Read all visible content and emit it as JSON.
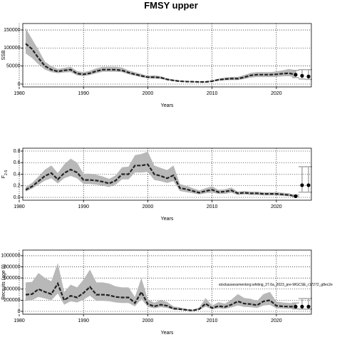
{
  "figure": {
    "title": "FMSY upper",
    "annotation": "stockassessmentorg:whiting_27.6a_2023_pre-WGCSE_r17272_g8ec2e"
  },
  "colors": {
    "band": "#b8b8b8",
    "line": "#222222",
    "error": "#aaaaaa",
    "point": "#000000"
  },
  "chart_data": [
    {
      "type": "line",
      "title": "",
      "xlabel": "Years",
      "ylabel": "SSB",
      "xlim": [
        1981,
        2025
      ],
      "ylim": [
        0,
        160000
      ],
      "grid": "dotted",
      "x_ticks": [
        1980,
        1990,
        2000,
        2010,
        2020
      ],
      "y_ticks": [
        0,
        50000,
        100000,
        150000
      ],
      "y_tick_labels": [
        "0",
        "50000",
        "100000",
        "150000"
      ],
      "years": [
        1981,
        1982,
        1983,
        1984,
        1985,
        1986,
        1987,
        1988,
        1989,
        1990,
        1991,
        1992,
        1993,
        1994,
        1995,
        1996,
        1997,
        1998,
        1999,
        2000,
        2001,
        2002,
        2003,
        2004,
        2005,
        2006,
        2007,
        2008,
        2009,
        2010,
        2011,
        2012,
        2013,
        2014,
        2015,
        2016,
        2017,
        2018,
        2019,
        2020,
        2021,
        2022,
        2023
      ],
      "median": [
        112000,
        97000,
        72000,
        50000,
        40000,
        35000,
        38000,
        40000,
        29000,
        27000,
        30000,
        36000,
        40000,
        40000,
        40000,
        38000,
        32000,
        27000,
        23000,
        19000,
        19000,
        18000,
        13000,
        10000,
        8000,
        7000,
        6500,
        6000,
        6000,
        8000,
        12000,
        14000,
        15000,
        15000,
        19000,
        24000,
        26000,
        26000,
        26000,
        27000,
        29000,
        30000,
        26000
      ],
      "lower": [
        85000,
        72000,
        55000,
        40000,
        33000,
        30000,
        32000,
        33000,
        24000,
        22000,
        25000,
        30000,
        34000,
        34000,
        34000,
        33000,
        27000,
        23000,
        19000,
        16000,
        15500,
        14500,
        10500,
        8000,
        6500,
        5800,
        5200,
        4800,
        4800,
        6300,
        9000,
        10500,
        11000,
        11000,
        14000,
        18000,
        19500,
        19500,
        19500,
        20000,
        21500,
        22000,
        18000
      ],
      "upper": [
        155000,
        125000,
        95000,
        62000,
        50000,
        42000,
        45000,
        48000,
        36000,
        33000,
        37000,
        44000,
        48000,
        48000,
        48000,
        46000,
        38000,
        33000,
        28000,
        23000,
        24000,
        22000,
        16000,
        12500,
        10000,
        8500,
        8000,
        7500,
        7500,
        10000,
        15000,
        18000,
        20000,
        20000,
        25000,
        31000,
        33000,
        33000,
        33000,
        35000,
        38000,
        42000,
        38000
      ],
      "projection": {
        "x": [
          2023,
          2024,
          2025
        ],
        "y": [
          26000,
          23000,
          21000
        ],
        "lower": [
          18000,
          14000,
          13000
        ],
        "upper": [
          38000,
          40000,
          40000
        ]
      }
    },
    {
      "type": "line",
      "title": "",
      "xlabel": "Years",
      "ylabel": "F",
      "ylabel_sub": "2-5",
      "xlim": [
        1981,
        2025
      ],
      "ylim": [
        0,
        0.8
      ],
      "grid": "dotted",
      "x_ticks": [
        1980,
        1990,
        2000,
        2010,
        2020
      ],
      "y_ticks": [
        0.0,
        0.2,
        0.4,
        0.6,
        0.8
      ],
      "y_tick_labels": [
        "0.0",
        "0.2",
        "0.4",
        "0.6",
        "0.8"
      ],
      "years": [
        1981,
        1982,
        1983,
        1984,
        1985,
        1986,
        1987,
        1988,
        1989,
        1990,
        1991,
        1992,
        1993,
        1994,
        1995,
        1996,
        1997,
        1998,
        1999,
        2000,
        2001,
        2002,
        2003,
        2004,
        2005,
        2006,
        2007,
        2008,
        2009,
        2010,
        2011,
        2012,
        2013,
        2014,
        2015,
        2016,
        2017,
        2018,
        2019,
        2020,
        2021,
        2022,
        2023
      ],
      "median": [
        0.13,
        0.19,
        0.28,
        0.37,
        0.42,
        0.31,
        0.42,
        0.48,
        0.43,
        0.3,
        0.3,
        0.29,
        0.27,
        0.24,
        0.29,
        0.4,
        0.4,
        0.55,
        0.55,
        0.57,
        0.4,
        0.37,
        0.33,
        0.38,
        0.16,
        0.14,
        0.11,
        0.08,
        0.11,
        0.13,
        0.09,
        0.1,
        0.12,
        0.07,
        0.08,
        0.07,
        0.07,
        0.06,
        0.06,
        0.06,
        0.05,
        0.04,
        0.02
      ],
      "lower": [
        0.1,
        0.15,
        0.22,
        0.29,
        0.33,
        0.24,
        0.33,
        0.37,
        0.33,
        0.23,
        0.23,
        0.22,
        0.2,
        0.18,
        0.22,
        0.31,
        0.31,
        0.43,
        0.43,
        0.44,
        0.3,
        0.28,
        0.25,
        0.28,
        0.11,
        0.09,
        0.07,
        0.05,
        0.07,
        0.08,
        0.06,
        0.06,
        0.08,
        0.04,
        0.05,
        0.04,
        0.04,
        0.035,
        0.035,
        0.035,
        0.025,
        0.02,
        0.01
      ],
      "upper": [
        0.18,
        0.25,
        0.36,
        0.48,
        0.55,
        0.42,
        0.57,
        0.67,
        0.6,
        0.41,
        0.41,
        0.39,
        0.36,
        0.32,
        0.38,
        0.52,
        0.53,
        0.73,
        0.75,
        0.79,
        0.55,
        0.51,
        0.47,
        0.55,
        0.23,
        0.2,
        0.16,
        0.12,
        0.16,
        0.19,
        0.13,
        0.14,
        0.17,
        0.1,
        0.11,
        0.1,
        0.1,
        0.09,
        0.09,
        0.09,
        0.08,
        0.07,
        0.04
      ],
      "projection": {
        "x": [
          2023,
          2024,
          2025
        ],
        "y": [
          0.02,
          0.21,
          0.21
        ],
        "lower": [
          0.01,
          0.09,
          0.09
        ],
        "upper": [
          0.04,
          0.53,
          0.53
        ]
      }
    },
    {
      "type": "line",
      "title": "",
      "xlabel": "Years",
      "ylabel": "Recruits (age 0)",
      "xlim": [
        1981,
        2025
      ],
      "ylim": [
        0,
        1050000
      ],
      "grid": "dotted",
      "x_ticks": [
        1980,
        1990,
        2000,
        2010,
        2020
      ],
      "y_ticks": [
        0,
        200000,
        400000,
        600000,
        800000,
        1000000
      ],
      "y_tick_labels": [
        "0",
        "200000",
        "400000",
        "600000",
        "800000",
        "1000000"
      ],
      "years": [
        1981,
        1982,
        1983,
        1984,
        1985,
        1986,
        1987,
        1988,
        1989,
        1990,
        1991,
        1992,
        1993,
        1994,
        1995,
        1996,
        1997,
        1998,
        1999,
        2000,
        2001,
        2002,
        2003,
        2004,
        2005,
        2006,
        2007,
        2008,
        2009,
        2010,
        2011,
        2012,
        2013,
        2014,
        2015,
        2016,
        2017,
        2018,
        2019,
        2020,
        2021,
        2022,
        2023
      ],
      "median": [
        300000,
        310000,
        400000,
        350000,
        310000,
        500000,
        200000,
        280000,
        250000,
        330000,
        440000,
        300000,
        300000,
        290000,
        260000,
        250000,
        250000,
        150000,
        350000,
        130000,
        90000,
        120000,
        100000,
        50000,
        40000,
        25000,
        15000,
        40000,
        140000,
        60000,
        95000,
        80000,
        120000,
        180000,
        140000,
        130000,
        110000,
        180000,
        200000,
        100000,
        90000,
        85000,
        85000
      ],
      "lower": [
        190000,
        200000,
        260000,
        230000,
        200000,
        320000,
        120000,
        180000,
        160000,
        210000,
        280000,
        190000,
        190000,
        180000,
        160000,
        150000,
        150000,
        90000,
        220000,
        80000,
        55000,
        75000,
        60000,
        30000,
        24000,
        14000,
        8000,
        24000,
        85000,
        35000,
        55000,
        45000,
        70000,
        105000,
        80000,
        75000,
        60000,
        105000,
        115000,
        55000,
        50000,
        45000,
        45000
      ],
      "upper": [
        520000,
        530000,
        690000,
        600000,
        540000,
        870000,
        350000,
        480000,
        430000,
        570000,
        750000,
        520000,
        520000,
        500000,
        450000,
        430000,
        430000,
        260000,
        600000,
        220000,
        155000,
        205000,
        170000,
        90000,
        70000,
        45000,
        28000,
        70000,
        240000,
        105000,
        165000,
        140000,
        210000,
        310000,
        240000,
        225000,
        190000,
        310000,
        350000,
        175000,
        160000,
        150000,
        150000
      ],
      "projection": {
        "x": [
          2023,
          2024,
          2025
        ],
        "y": [
          85000,
          85000,
          85000
        ],
        "lower": [
          45000,
          40000,
          40000
        ],
        "upper": [
          150000,
          230000,
          230000
        ]
      }
    }
  ]
}
